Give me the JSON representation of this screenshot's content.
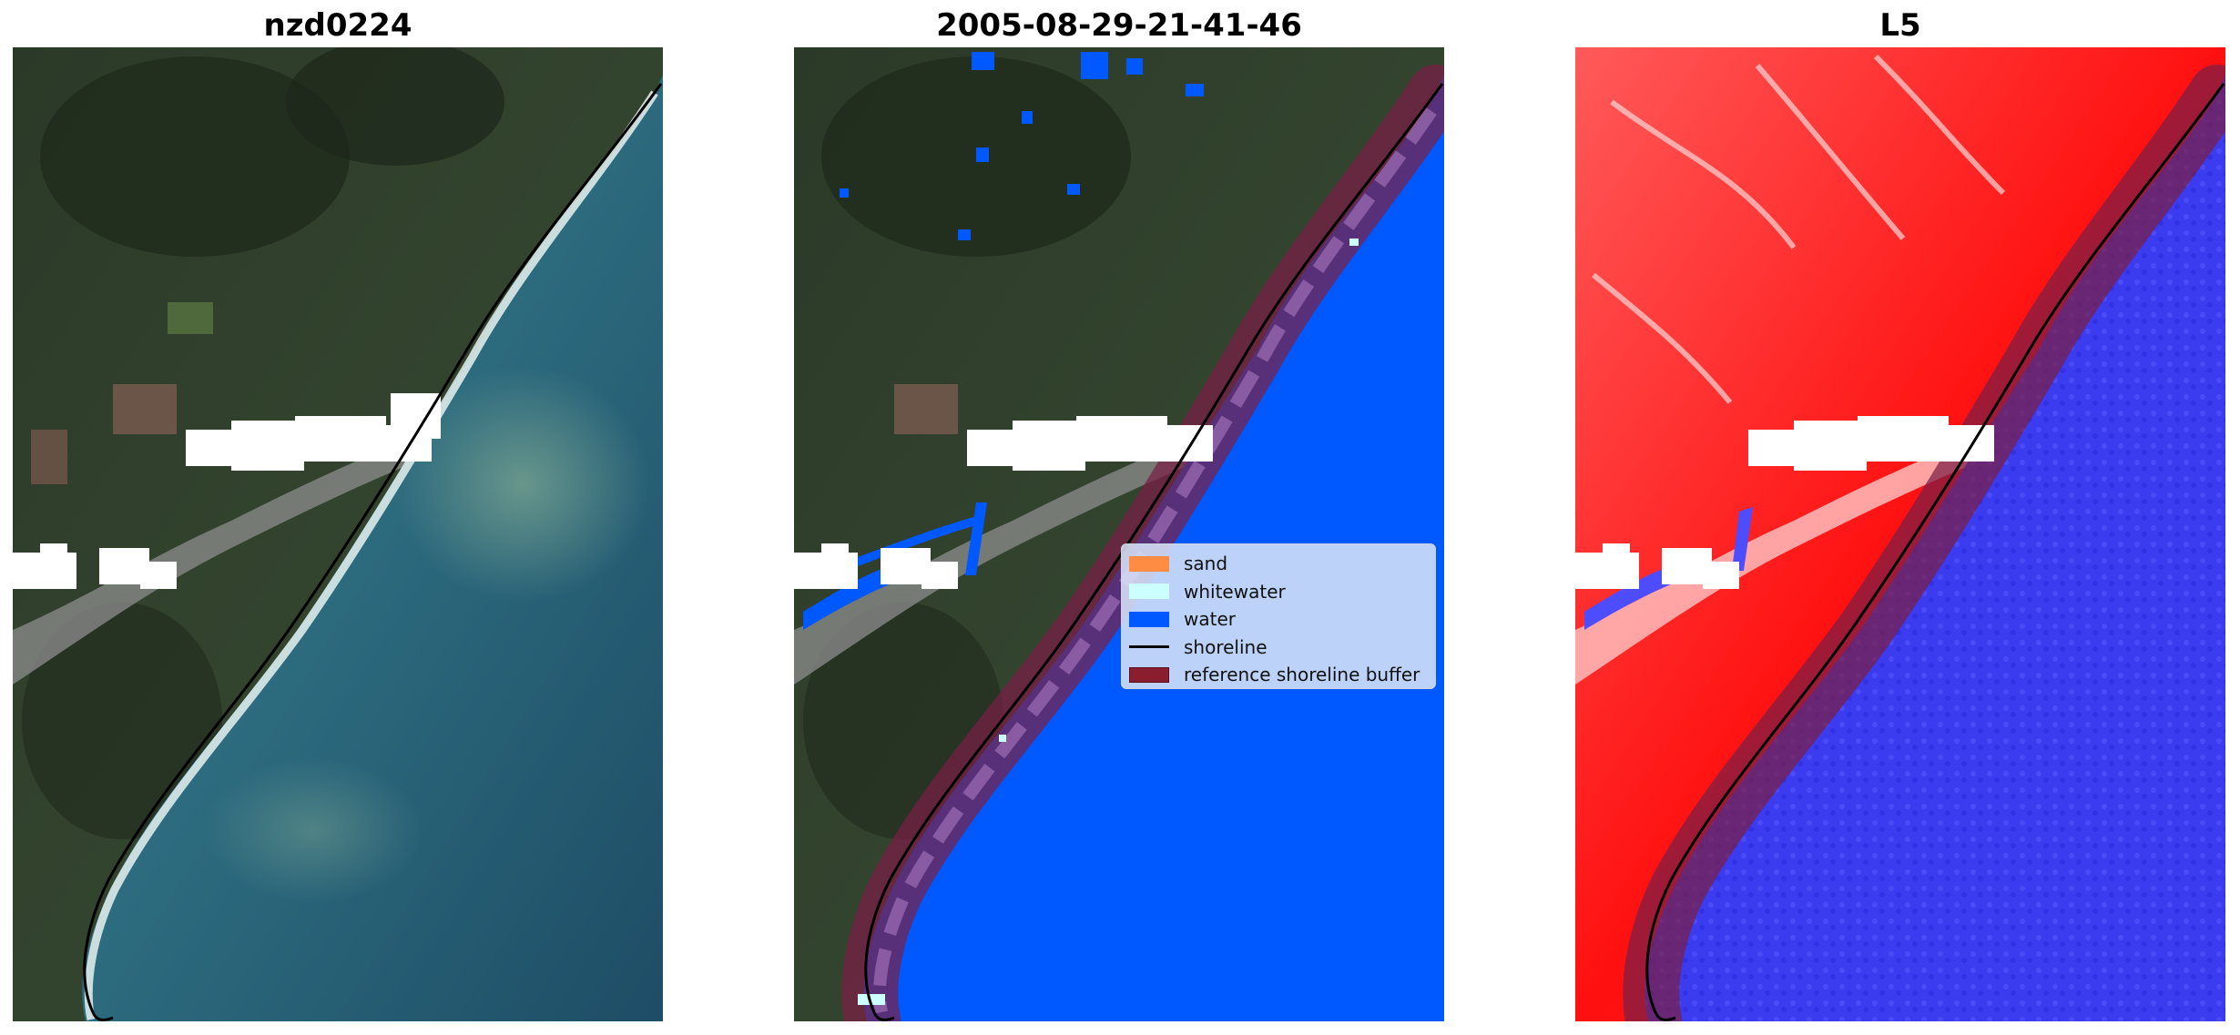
{
  "panels": [
    {
      "title": "nzd0224",
      "kind": "rgb-satellite-image"
    },
    {
      "title": "2005-08-29-21-41-46",
      "kind": "classified-image"
    },
    {
      "title": "L5",
      "kind": "water-index-image"
    }
  ],
  "legend": {
    "items": [
      {
        "label": "sand",
        "type": "patch",
        "color": "#ff8c42"
      },
      {
        "label": "whitewater",
        "type": "patch",
        "color": "#ccffff"
      },
      {
        "label": "water",
        "type": "patch",
        "color": "#0059ff"
      },
      {
        "label": "shoreline",
        "type": "line",
        "color": "#000000"
      },
      {
        "label": "reference shoreline buffer",
        "type": "patch",
        "color": "#8b1e2e"
      }
    ]
  },
  "colors": {
    "ocean": "#2c6a7e",
    "land": "#2f3d2b",
    "water_class": "#0059ff",
    "buffer": "#7a1e45",
    "index_land": "#ff1010",
    "index_water": "#3333ee",
    "cloud_mask": "#ffffff"
  }
}
